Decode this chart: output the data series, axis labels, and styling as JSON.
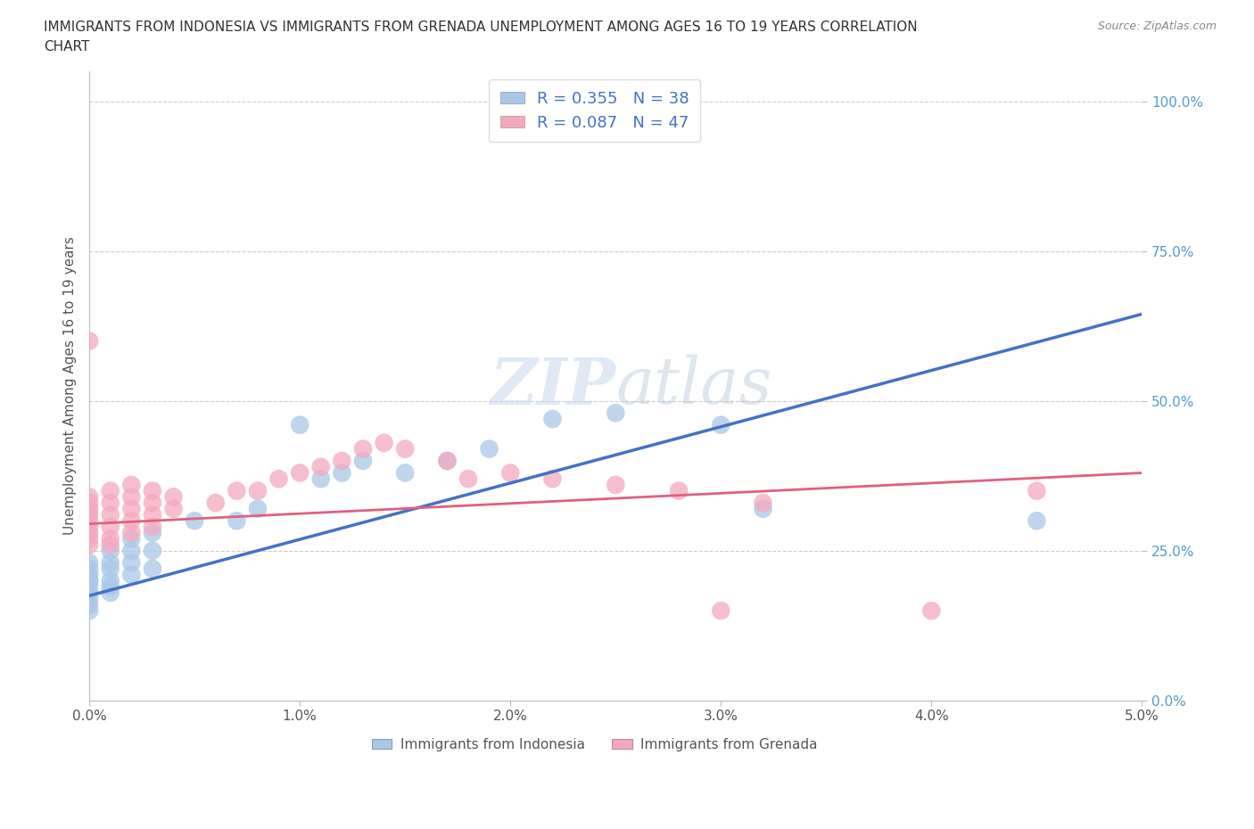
{
  "title_line1": "IMMIGRANTS FROM INDONESIA VS IMMIGRANTS FROM GRENADA UNEMPLOYMENT AMONG AGES 16 TO 19 YEARS CORRELATION",
  "title_line2": "CHART",
  "source": "Source: ZipAtlas.com",
  "ylabel": "Unemployment Among Ages 16 to 19 years",
  "xlim": [
    0.0,
    0.05
  ],
  "ylim": [
    0.0,
    1.05
  ],
  "yticks": [
    0.0,
    0.25,
    0.5,
    0.75,
    1.0
  ],
  "xticks": [
    0.0,
    0.01,
    0.02,
    0.03,
    0.04,
    0.05
  ],
  "indonesia_color": "#a8c8e8",
  "grenada_color": "#f4a8c0",
  "indonesia_line_color": "#4472c4",
  "grenada_line_color": "#e06080",
  "R_indonesia": 0.355,
  "N_indonesia": 38,
  "R_grenada": 0.087,
  "N_grenada": 47,
  "watermark": "ZIPatlas",
  "indo_x": [
    0.0,
    0.0,
    0.0,
    0.0,
    0.0,
    0.0,
    0.0,
    0.0,
    0.0,
    0.0,
    0.001,
    0.001,
    0.001,
    0.001,
    0.001,
    0.001,
    0.002,
    0.002,
    0.002,
    0.002,
    0.003,
    0.003,
    0.003,
    0.005,
    0.007,
    0.008,
    0.01,
    0.011,
    0.012,
    0.013,
    0.015,
    0.017,
    0.019,
    0.022,
    0.025,
    0.03,
    0.032,
    0.045
  ],
  "indo_y": [
    0.15,
    0.16,
    0.17,
    0.18,
    0.19,
    0.2,
    0.2,
    0.21,
    0.22,
    0.23,
    0.18,
    0.19,
    0.2,
    0.22,
    0.23,
    0.25,
    0.21,
    0.23,
    0.25,
    0.27,
    0.22,
    0.25,
    0.28,
    0.3,
    0.3,
    0.32,
    0.46,
    0.37,
    0.38,
    0.4,
    0.38,
    0.4,
    0.42,
    0.47,
    0.48,
    0.46,
    0.32,
    0.3
  ],
  "gren_x": [
    0.0,
    0.0,
    0.0,
    0.0,
    0.0,
    0.0,
    0.0,
    0.0,
    0.0,
    0.0,
    0.001,
    0.001,
    0.001,
    0.001,
    0.001,
    0.001,
    0.002,
    0.002,
    0.002,
    0.002,
    0.002,
    0.003,
    0.003,
    0.003,
    0.003,
    0.004,
    0.004,
    0.006,
    0.007,
    0.008,
    0.009,
    0.01,
    0.011,
    0.012,
    0.013,
    0.014,
    0.015,
    0.017,
    0.018,
    0.02,
    0.022,
    0.025,
    0.028,
    0.03,
    0.032,
    0.04,
    0.045
  ],
  "gren_y": [
    0.26,
    0.27,
    0.28,
    0.29,
    0.3,
    0.31,
    0.32,
    0.33,
    0.34,
    0.6,
    0.26,
    0.27,
    0.29,
    0.31,
    0.33,
    0.35,
    0.28,
    0.3,
    0.32,
    0.34,
    0.36,
    0.29,
    0.31,
    0.33,
    0.35,
    0.32,
    0.34,
    0.33,
    0.35,
    0.35,
    0.37,
    0.38,
    0.39,
    0.4,
    0.42,
    0.43,
    0.42,
    0.4,
    0.37,
    0.38,
    0.37,
    0.36,
    0.35,
    0.15,
    0.33,
    0.15,
    0.35
  ]
}
